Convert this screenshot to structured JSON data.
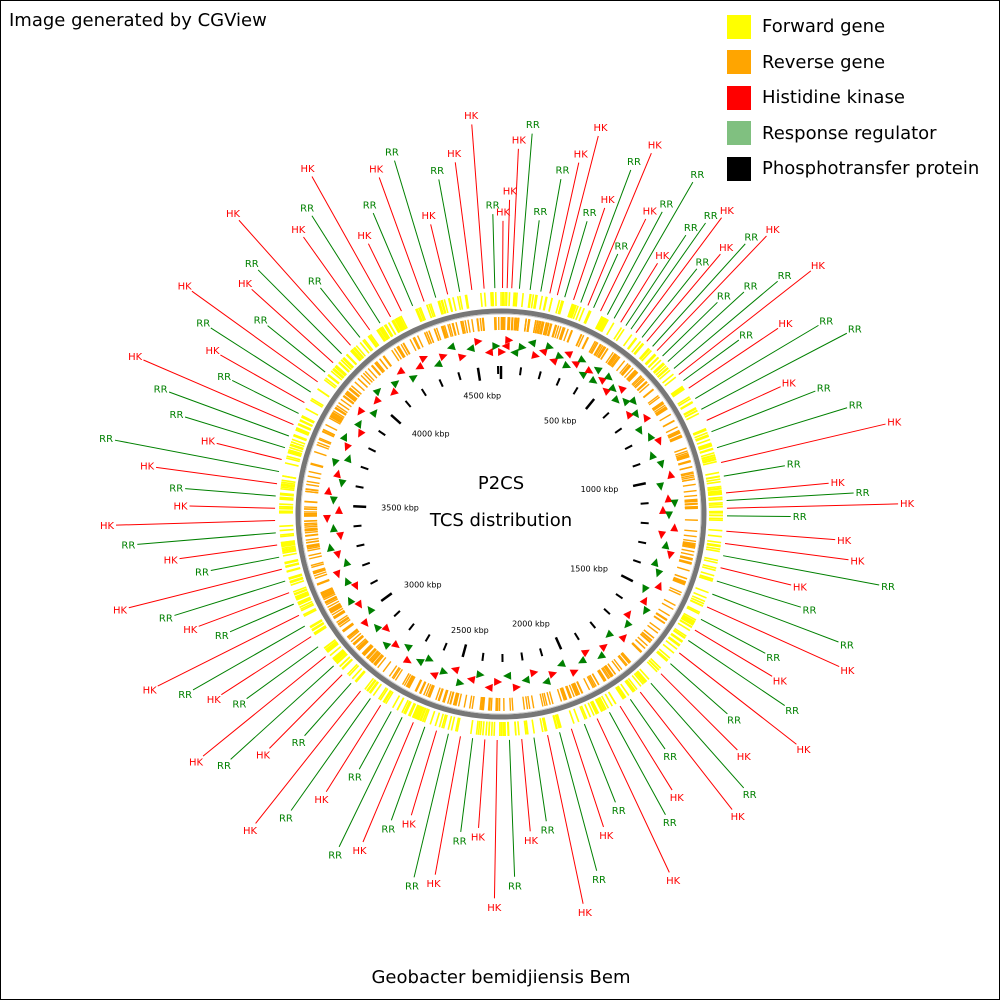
{
  "header": {
    "credit": "Image generated by CGView"
  },
  "legend": [
    {
      "label": "Forward gene",
      "color": "#FFFF00"
    },
    {
      "label": "Reverse gene",
      "color": "#FFA500"
    },
    {
      "label": "Histidine kinase",
      "color": "#FF0000"
    },
    {
      "label": "Response regulator",
      "color": "#80C080"
    },
    {
      "label": "Phosphotransfer protein",
      "color": "#000000"
    }
  ],
  "map": {
    "title_line1": "P2CS",
    "title_line2": "TCS distribution",
    "genome_name": "Geobacter bemidjiensis Bem",
    "sequence_length_kbp": 4615,
    "ticks_kbp": [
      500,
      1000,
      1500,
      2000,
      2500,
      3000,
      3500,
      4000,
      4500
    ],
    "tick_labels": [
      "500 kbp",
      "1000 kbp",
      "1500 kbp",
      "2000 kbp",
      "2500 kbp",
      "3000 kbp",
      "3500 kbp",
      "4000 kbp",
      "4500 kbp"
    ],
    "callout_colors": {
      "HK": "#FF0000",
      "RR": "#008000"
    }
  },
  "chart_data": {
    "type": "circular genome map",
    "features": [
      {
        "pos_kbp": 5,
        "type": "HK"
      },
      {
        "pos_kbp": 20,
        "type": "HK"
      },
      {
        "pos_kbp": 35,
        "type": "HK"
      },
      {
        "pos_kbp": 60,
        "type": "RR"
      },
      {
        "pos_kbp": 95,
        "type": "RR"
      },
      {
        "pos_kbp": 130,
        "type": "RR"
      },
      {
        "pos_kbp": 160,
        "type": "HK"
      },
      {
        "pos_kbp": 185,
        "type": "HK"
      },
      {
        "pos_kbp": 210,
        "type": "RR"
      },
      {
        "pos_kbp": 240,
        "type": "HK"
      },
      {
        "pos_kbp": 265,
        "type": "RR"
      },
      {
        "pos_kbp": 290,
        "type": "HK"
      },
      {
        "pos_kbp": 310,
        "type": "RR"
      },
      {
        "pos_kbp": 335,
        "type": "HK"
      },
      {
        "pos_kbp": 360,
        "type": "RR"
      },
      {
        "pos_kbp": 385,
        "type": "RR"
      },
      {
        "pos_kbp": 410,
        "type": "HK"
      },
      {
        "pos_kbp": 430,
        "type": "RR"
      },
      {
        "pos_kbp": 450,
        "type": "RR"
      },
      {
        "pos_kbp": 470,
        "type": "HK"
      },
      {
        "pos_kbp": 495,
        "type": "RR"
      },
      {
        "pos_kbp": 515,
        "type": "HK"
      },
      {
        "pos_kbp": 540,
        "type": "RR"
      },
      {
        "pos_kbp": 560,
        "type": "HK"
      },
      {
        "pos_kbp": 585,
        "type": "RR"
      },
      {
        "pos_kbp": 610,
        "type": "RR"
      },
      {
        "pos_kbp": 640,
        "type": "RR"
      },
      {
        "pos_kbp": 665,
        "type": "HK"
      },
      {
        "pos_kbp": 690,
        "type": "RR"
      },
      {
        "pos_kbp": 720,
        "type": "HK"
      },
      {
        "pos_kbp": 760,
        "type": "RR"
      },
      {
        "pos_kbp": 800,
        "type": "RR"
      },
      {
        "pos_kbp": 840,
        "type": "HK"
      },
      {
        "pos_kbp": 880,
        "type": "RR"
      },
      {
        "pos_kbp": 935,
        "type": "RR"
      },
      {
        "pos_kbp": 985,
        "type": "HK"
      },
      {
        "pos_kbp": 1030,
        "type": "RR"
      },
      {
        "pos_kbp": 1085,
        "type": "HK"
      },
      {
        "pos_kbp": 1110,
        "type": "RR"
      },
      {
        "pos_kbp": 1135,
        "type": "HK"
      },
      {
        "pos_kbp": 1160,
        "type": "RR"
      },
      {
        "pos_kbp": 1210,
        "type": "HK"
      },
      {
        "pos_kbp": 1250,
        "type": "HK"
      },
      {
        "pos_kbp": 1290,
        "type": "RR"
      },
      {
        "pos_kbp": 1330,
        "type": "HK"
      },
      {
        "pos_kbp": 1375,
        "type": "RR"
      },
      {
        "pos_kbp": 1420,
        "type": "RR"
      },
      {
        "pos_kbp": 1465,
        "type": "HK"
      },
      {
        "pos_kbp": 1510,
        "type": "RR"
      },
      {
        "pos_kbp": 1550,
        "type": "HK"
      },
      {
        "pos_kbp": 1590,
        "type": "RR"
      },
      {
        "pos_kbp": 1640,
        "type": "HK"
      },
      {
        "pos_kbp": 1685,
        "type": "RR"
      },
      {
        "pos_kbp": 1730,
        "type": "HK"
      },
      {
        "pos_kbp": 1775,
        "type": "RR"
      },
      {
        "pos_kbp": 1820,
        "type": "HK"
      },
      {
        "pos_kbp": 1860,
        "type": "RR"
      },
      {
        "pos_kbp": 1900,
        "type": "HK"
      },
      {
        "pos_kbp": 1940,
        "type": "RR"
      },
      {
        "pos_kbp": 1985,
        "type": "HK"
      },
      {
        "pos_kbp": 2030,
        "type": "RR"
      },
      {
        "pos_kbp": 2075,
        "type": "HK"
      },
      {
        "pos_kbp": 2115,
        "type": "RR"
      },
      {
        "pos_kbp": 2155,
        "type": "HK"
      },
      {
        "pos_kbp": 2200,
        "type": "RR"
      },
      {
        "pos_kbp": 2240,
        "type": "HK"
      },
      {
        "pos_kbp": 2280,
        "type": "RR"
      },
      {
        "pos_kbp": 2320,
        "type": "HK"
      },
      {
        "pos_kbp": 2360,
        "type": "HK"
      },
      {
        "pos_kbp": 2400,
        "type": "RR"
      },
      {
        "pos_kbp": 2440,
        "type": "HK"
      },
      {
        "pos_kbp": 2480,
        "type": "RR"
      },
      {
        "pos_kbp": 2520,
        "type": "HK"
      },
      {
        "pos_kbp": 2560,
        "type": "RR"
      },
      {
        "pos_kbp": 2600,
        "type": "HK"
      },
      {
        "pos_kbp": 2640,
        "type": "RR"
      },
      {
        "pos_kbp": 2680,
        "type": "RR"
      },
      {
        "pos_kbp": 2720,
        "type": "HK"
      },
      {
        "pos_kbp": 2760,
        "type": "RR"
      },
      {
        "pos_kbp": 2800,
        "type": "HK"
      },
      {
        "pos_kbp": 2840,
        "type": "RR"
      },
      {
        "pos_kbp": 2880,
        "type": "HK"
      },
      {
        "pos_kbp": 2920,
        "type": "RR"
      },
      {
        "pos_kbp": 2960,
        "type": "HK"
      },
      {
        "pos_kbp": 3000,
        "type": "RR"
      },
      {
        "pos_kbp": 3040,
        "type": "HK"
      },
      {
        "pos_kbp": 3080,
        "type": "RR"
      },
      {
        "pos_kbp": 3120,
        "type": "HK"
      },
      {
        "pos_kbp": 3160,
        "type": "RR"
      },
      {
        "pos_kbp": 3200,
        "type": "HK"
      },
      {
        "pos_kbp": 3240,
        "type": "RR"
      },
      {
        "pos_kbp": 3280,
        "type": "HK"
      },
      {
        "pos_kbp": 3320,
        "type": "RR"
      },
      {
        "pos_kbp": 3360,
        "type": "HK"
      },
      {
        "pos_kbp": 3400,
        "type": "RR"
      },
      {
        "pos_kbp": 3440,
        "type": "HK"
      },
      {
        "pos_kbp": 3480,
        "type": "HK"
      },
      {
        "pos_kbp": 3520,
        "type": "RR"
      },
      {
        "pos_kbp": 3560,
        "type": "HK"
      },
      {
        "pos_kbp": 3600,
        "type": "RR"
      },
      {
        "pos_kbp": 3640,
        "type": "HK"
      },
      {
        "pos_kbp": 3680,
        "type": "RR"
      },
      {
        "pos_kbp": 3720,
        "type": "RR"
      },
      {
        "pos_kbp": 3760,
        "type": "HK"
      },
      {
        "pos_kbp": 3800,
        "type": "RR"
      },
      {
        "pos_kbp": 3840,
        "type": "HK"
      },
      {
        "pos_kbp": 3880,
        "type": "RR"
      },
      {
        "pos_kbp": 3920,
        "type": "HK"
      },
      {
        "pos_kbp": 3960,
        "type": "RR"
      },
      {
        "pos_kbp": 4000,
        "type": "HK"
      },
      {
        "pos_kbp": 4040,
        "type": "RR"
      },
      {
        "pos_kbp": 4080,
        "type": "HK"
      },
      {
        "pos_kbp": 4120,
        "type": "RR"
      },
      {
        "pos_kbp": 4160,
        "type": "HK"
      },
      {
        "pos_kbp": 4200,
        "type": "RR"
      },
      {
        "pos_kbp": 4240,
        "type": "HK"
      },
      {
        "pos_kbp": 4280,
        "type": "HK"
      },
      {
        "pos_kbp": 4320,
        "type": "RR"
      },
      {
        "pos_kbp": 4360,
        "type": "HK"
      },
      {
        "pos_kbp": 4400,
        "type": "RR"
      },
      {
        "pos_kbp": 4440,
        "type": "HK"
      },
      {
        "pos_kbp": 4480,
        "type": "RR"
      },
      {
        "pos_kbp": 4520,
        "type": "HK"
      },
      {
        "pos_kbp": 4560,
        "type": "HK"
      },
      {
        "pos_kbp": 4595,
        "type": "RR"
      }
    ]
  }
}
